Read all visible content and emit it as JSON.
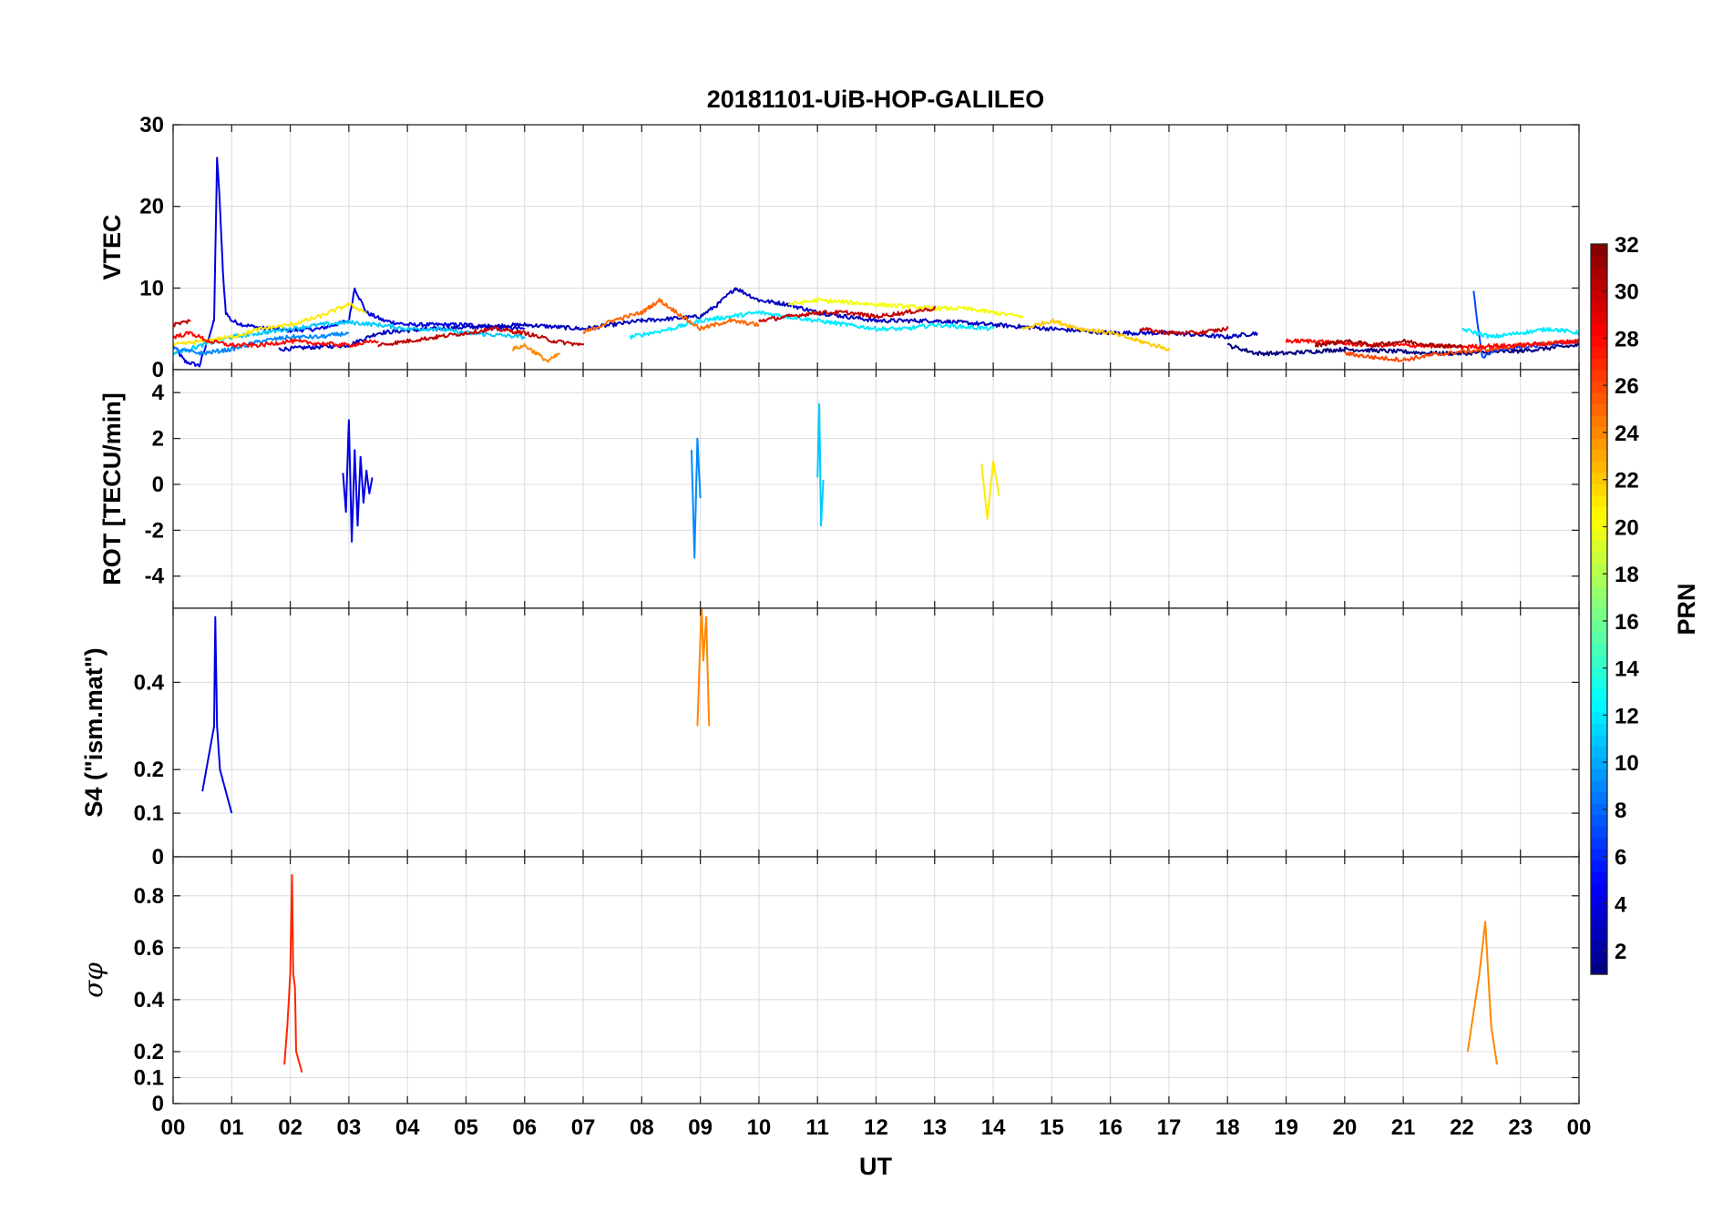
{
  "chart_data": {
    "type": "line",
    "title": "20181101-UiB-HOP-GALILEO",
    "xlabel": "UT",
    "x_ticks": [
      "00",
      "01",
      "02",
      "03",
      "04",
      "05",
      "06",
      "07",
      "08",
      "09",
      "10",
      "11",
      "12",
      "13",
      "14",
      "15",
      "16",
      "17",
      "18",
      "19",
      "20",
      "21",
      "22",
      "23",
      "00"
    ],
    "xlim_hours": [
      0,
      24
    ],
    "colorbar": {
      "label": "PRN",
      "colormap": "jet",
      "range": [
        1,
        32
      ],
      "ticks": [
        "2",
        "4",
        "6",
        "8",
        "10",
        "12",
        "14",
        "16",
        "18",
        "20",
        "22",
        "24",
        "26",
        "28",
        "30",
        "32"
      ]
    },
    "panels": [
      {
        "name": "vtec",
        "ylabel": "VTEC",
        "ylim": [
          0,
          30
        ],
        "y_ticks": [
          "0",
          "10",
          "20",
          "30"
        ],
        "series": [
          {
            "prn": 4,
            "x": [
              0.0,
              0.2,
              0.45,
              0.7,
              0.75,
              0.8,
              0.85,
              0.9,
              1.0,
              1.2,
              1.6,
              2.0,
              2.5,
              3.0,
              3.1,
              3.3,
              3.6,
              4.0,
              5.0,
              6.0
            ],
            "y": [
              3.0,
              1.0,
              0.5,
              6.0,
              26.0,
              20.0,
              12.0,
              7.0,
              6.0,
              5.5,
              5.0,
              4.8,
              5.0,
              6.0,
              10.0,
              7.0,
              6.0,
              5.5,
              5.5,
              5.0
            ]
          },
          {
            "prn": 3,
            "x": [
              1.8,
              2.5,
              3.0,
              3.5,
              4.0,
              5.0,
              6.0,
              7.0,
              8.0,
              9.0,
              9.3,
              9.6,
              10.0,
              10.5,
              11.0,
              12.0,
              13.0,
              14.0,
              15.0,
              16.0,
              17.0,
              18.0,
              18.5
            ],
            "y": [
              2.5,
              2.8,
              3.0,
              4.5,
              4.8,
              5.2,
              5.5,
              5.0,
              6.0,
              6.5,
              8.0,
              10.0,
              8.5,
              8.0,
              7.0,
              6.0,
              6.0,
              5.5,
              5.0,
              4.5,
              4.5,
              4.0,
              4.5
            ]
          },
          {
            "prn": 1,
            "x": [
              18.0,
              18.5,
              19.0,
              20.0,
              21.0,
              21.5,
              22.0,
              23.0,
              24.0
            ],
            "y": [
              3.0,
              2.0,
              2.0,
              2.5,
              2.2,
              2.0,
              2.0,
              2.3,
              3.0
            ]
          },
          {
            "prn": 7,
            "x": [
              22.2,
              22.35,
              22.6,
              23.0,
              24.0
            ],
            "y": [
              9.5,
              1.5,
              2.5,
              2.8,
              3.5
            ]
          },
          {
            "prn": 11,
            "x": [
              0.0,
              0.5,
              1.0,
              1.5,
              2.0,
              2.5,
              3.0,
              3.5,
              4.0,
              4.5,
              5.0,
              6.0
            ],
            "y": [
              2.0,
              3.0,
              4.0,
              4.5,
              5.0,
              5.5,
              5.8,
              5.5,
              5.0,
              5.0,
              4.5,
              4.0
            ]
          },
          {
            "prn": 12,
            "x": [
              7.8,
              8.5,
              9.0,
              9.5,
              10.0,
              10.5,
              11.0,
              11.5,
              12.0,
              12.5,
              13.0,
              14.0
            ],
            "y": [
              4.0,
              5.0,
              6.0,
              6.5,
              7.0,
              6.5,
              6.0,
              5.5,
              5.0,
              5.0,
              5.5,
              5.0
            ]
          },
          {
            "prn": 12,
            "x": [
              22.0,
              22.5,
              23.0,
              23.5,
              24.0
            ],
            "y": [
              5.0,
              4.0,
              4.5,
              5.0,
              4.5
            ]
          },
          {
            "prn": 9,
            "x": [
              0.0,
              0.5,
              1.0,
              1.5,
              2.0,
              2.5,
              3.0
            ],
            "y": [
              2.5,
              2.0,
              2.5,
              3.5,
              4.0,
              4.0,
              4.5
            ]
          },
          {
            "prn": 21,
            "x": [
              0.0,
              0.5,
              1.0,
              1.5,
              2.0,
              2.5,
              3.0,
              3.3
            ],
            "y": [
              3.0,
              3.5,
              4.0,
              5.0,
              5.5,
              6.5,
              8.0,
              7.0
            ]
          },
          {
            "prn": 20,
            "x": [
              10.5,
              11.0,
              12.0,
              13.0,
              13.5,
              14.0,
              14.5
            ],
            "y": [
              8.0,
              8.5,
              8.0,
              7.5,
              7.5,
              7.0,
              6.5
            ]
          },
          {
            "prn": 22,
            "x": [
              14.5,
              15.0,
              15.5,
              16.0,
              16.5,
              17.0
            ],
            "y": [
              5.0,
              6.0,
              5.0,
              4.5,
              3.5,
              2.5
            ]
          },
          {
            "prn": 24,
            "x": [
              5.8,
              6.0,
              6.2,
              6.4,
              6.6
            ],
            "y": [
              2.5,
              3.0,
              2.0,
              1.0,
              2.0
            ]
          },
          {
            "prn": 25,
            "x": [
              7.0,
              7.5,
              8.0,
              8.3,
              8.5,
              9.0,
              9.5,
              10.0
            ],
            "y": [
              4.5,
              6.0,
              7.0,
              8.5,
              7.5,
              5.0,
              6.0,
              5.5
            ]
          },
          {
            "prn": 26,
            "x": [
              20.0,
              20.5,
              21.0,
              21.5,
              22.0,
              22.5,
              23.0,
              24.0
            ],
            "y": [
              2.0,
              1.5,
              1.2,
              1.8,
              2.2,
              2.5,
              3.0,
              3.5
            ]
          },
          {
            "prn": 28,
            "x": [
              0.0,
              0.3,
              0.6,
              1.0,
              1.5,
              2.0,
              2.5,
              3.0,
              3.5
            ],
            "y": [
              4.0,
              4.5,
              3.5,
              3.0,
              3.0,
              3.5,
              3.2,
              3.0,
              3.5
            ]
          },
          {
            "prn": 28,
            "x": [
              19.0,
              19.5,
              20.0,
              20.5,
              21.0,
              22.0,
              23.0,
              24.0
            ],
            "y": [
              3.5,
              3.5,
              3.2,
              3.0,
              3.0,
              2.8,
              3.0,
              3.5
            ]
          },
          {
            "prn": 30,
            "x": [
              0.0,
              0.3
            ],
            "y": [
              5.5,
              6.0
            ]
          },
          {
            "prn": 30,
            "x": [
              3.5,
              4.0,
              4.5,
              5.0,
              5.5,
              6.0,
              6.5,
              7.0
            ],
            "y": [
              3.0,
              3.5,
              4.0,
              4.5,
              5.0,
              4.5,
              3.5,
              3.0
            ]
          },
          {
            "prn": 30,
            "x": [
              10.0,
              10.5,
              11.0,
              11.5,
              12.0,
              12.5,
              13.0
            ],
            "y": [
              6.0,
              6.5,
              7.0,
              7.0,
              6.5,
              7.0,
              7.5
            ]
          },
          {
            "prn": 30,
            "x": [
              16.5,
              17.0,
              17.5,
              18.0
            ],
            "y": [
              5.0,
              4.5,
              4.5,
              5.0
            ]
          },
          {
            "prn": 31,
            "x": [
              19.5,
              20.0,
              20.5,
              21.0,
              21.5,
              22.0
            ],
            "y": [
              3.0,
              3.5,
              3.0,
              3.5,
              3.0,
              2.8
            ]
          }
        ]
      },
      {
        "name": "rot",
        "ylabel": "ROT [TECU/min]",
        "ylim": [
          -5.4,
          5.0
        ],
        "y_ticks": [
          "-4",
          "-2",
          "0",
          "2",
          "4"
        ],
        "series_note_hidden": "",
        "series": [
          {
            "prn": 4,
            "x": [
              2.9,
              2.95,
              3.0,
              3.05,
              3.1,
              3.15,
              3.2,
              3.25,
              3.3,
              3.35,
              3.4
            ],
            "y": [
              0.5,
              -1.2,
              2.8,
              -2.5,
              1.5,
              -1.8,
              1.2,
              -0.8,
              0.6,
              -0.4,
              0.3
            ]
          },
          {
            "prn": 9,
            "x": [
              8.85,
              8.9,
              8.95,
              9.0
            ],
            "y": [
              1.5,
              -3.2,
              2.0,
              -0.6
            ]
          },
          {
            "prn": 11,
            "x": [
              11.0,
              11.03,
              11.06,
              11.1
            ],
            "y": [
              0.3,
              3.5,
              -1.8,
              0.2
            ]
          },
          {
            "prn": 21,
            "x": [
              13.8,
              13.9,
              14.0,
              14.1
            ],
            "y": [
              0.9,
              -1.5,
              1.0,
              -0.5
            ]
          }
        ]
      },
      {
        "name": "s4",
        "ylabel": "S4 (\"ism.mat\")",
        "ylim": [
          0,
          0.57
        ],
        "y_ticks": [
          "0",
          "0.1",
          "0.2",
          "0.4"
        ],
        "series": [
          {
            "prn": 4,
            "x": [
              0.5,
              0.7,
              0.72,
              0.75,
              0.8,
              0.9,
              1.0
            ],
            "y": [
              0.15,
              0.3,
              0.55,
              0.3,
              0.2,
              0.15,
              0.1
            ]
          },
          {
            "prn": 24,
            "x": [
              8.95,
              9.0,
              9.02,
              9.05,
              9.1,
              9.15
            ],
            "y": [
              0.3,
              0.5,
              0.58,
              0.45,
              0.55,
              0.3
            ]
          }
        ]
      },
      {
        "name": "sigma_phi",
        "ylabel": "σφ",
        "ylim": [
          0,
          0.95
        ],
        "y_ticks": [
          "0",
          "0.1",
          "0.2",
          "0.4",
          "0.6",
          "0.8"
        ],
        "series": [
          {
            "prn": 27,
            "x": [
              1.9,
              1.95,
              2.0,
              2.03,
              2.05,
              2.08,
              2.1,
              2.2
            ],
            "y": [
              0.15,
              0.3,
              0.5,
              0.88,
              0.5,
              0.45,
              0.2,
              0.12
            ]
          },
          {
            "prn": 24,
            "x": [
              22.1,
              22.2,
              22.3,
              22.4,
              22.5,
              22.6
            ],
            "y": [
              0.2,
              0.35,
              0.5,
              0.7,
              0.3,
              0.15
            ]
          }
        ]
      }
    ]
  }
}
